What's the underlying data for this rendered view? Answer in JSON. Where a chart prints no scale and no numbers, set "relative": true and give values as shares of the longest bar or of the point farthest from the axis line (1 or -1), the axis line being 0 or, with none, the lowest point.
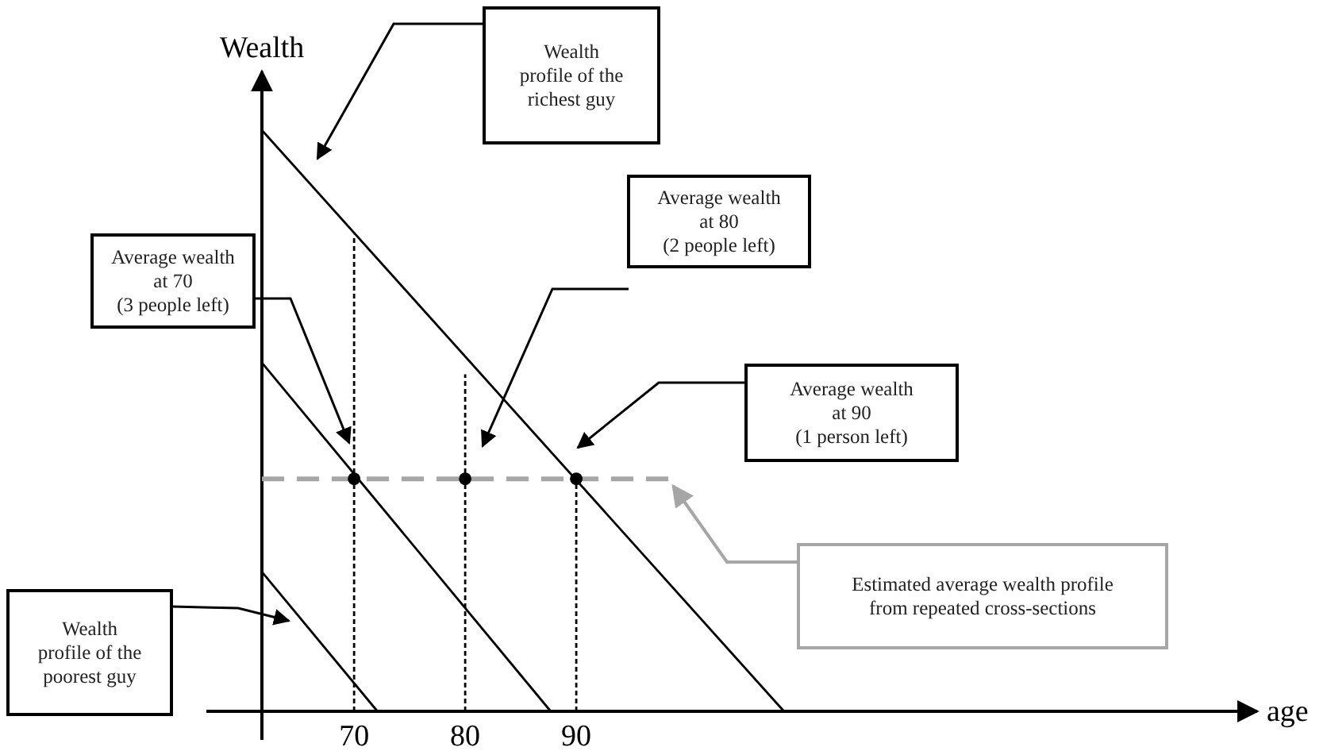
{
  "chart_data": {
    "type": "line",
    "relative": true,
    "xlabel": "age",
    "ylabel": "Wealth",
    "xlim": [
      61.7,
      151.3
    ],
    "xticks": [
      70,
      80,
      90
    ],
    "series": [
      {
        "x": [
          61.7,
          108.7
        ],
        "values": [
          1,
          0
        ],
        "color": "#000000"
      },
      {
        "x": [
          61.7,
          87.7
        ],
        "values": [
          0.6,
          0
        ],
        "color": "#000000"
      },
      {
        "x": [
          61.7,
          72.1
        ],
        "values": [
          0.24,
          0
        ],
        "color": "#000000"
      },
      {
        "x": [
          61.7,
          98.4
        ],
        "values": [
          0.4,
          0.4
        ],
        "color": "#a6a6a6",
        "line_style": "dashed"
      },
      {
        "x": [
          70,
          70
        ],
        "values": [
          0,
          0.82
        ],
        "color": "#000000",
        "line_style": "dotted"
      },
      {
        "x": [
          80,
          80
        ],
        "values": [
          0,
          0.58
        ],
        "color": "#000000",
        "line_style": "dotted"
      },
      {
        "x": [
          90,
          90
        ],
        "values": [
          0,
          0.4
        ],
        "color": "#000000",
        "line_style": "dotted"
      },
      {
        "type": "scatter",
        "x": [
          70,
          80,
          90
        ],
        "values": [
          0.4,
          0.4,
          0.4
        ],
        "color": "#000000",
        "marker": "circle"
      }
    ],
    "annotations": [
      "Wealth\nprofile of the\nrichest guy",
      "Average wealth\nat 70\n(3 people left)",
      "Average wealth\nat 80\n(2 people left)",
      "Average wealth\nat 90\n(1 person left)",
      "Estimated average wealth profile\nfrom repeated cross-sections",
      "Wealth\nprofile of the\npoorest guy"
    ]
  }
}
